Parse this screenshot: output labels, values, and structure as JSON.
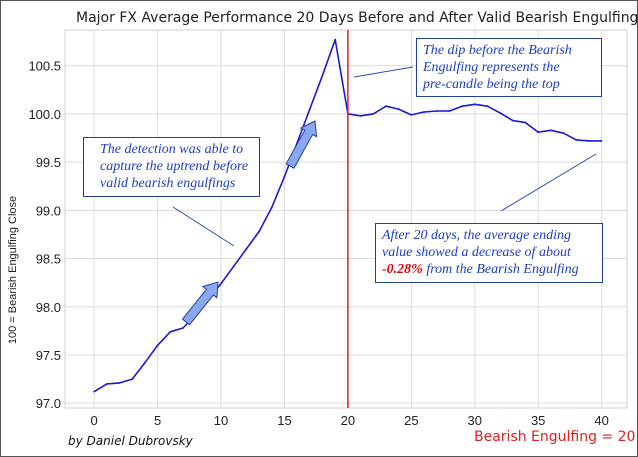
{
  "chart_data": {
    "type": "line",
    "title": "Major FX Average Performance 20 Days Before and After Valid Bearish Engulfings",
    "xlabel": "",
    "ylabel": "100 = Bearish Engulfing Close",
    "xlim": [
      -2.3,
      42.0
    ],
    "ylim": [
      96.95,
      100.87
    ],
    "x_ticks": [
      0,
      5,
      10,
      15,
      20,
      25,
      30,
      35,
      40
    ],
    "y_ticks": [
      97.0,
      97.5,
      98.0,
      98.5,
      99.0,
      99.5,
      100.0,
      100.5
    ],
    "grid": true,
    "series": [
      {
        "color": "#1a1ad6",
        "x": [
          0,
          1,
          2,
          3,
          4,
          5,
          6,
          7,
          8,
          9,
          10,
          11,
          12,
          13,
          14,
          15,
          16,
          17,
          18,
          19,
          20,
          21,
          22,
          23,
          24,
          25,
          26,
          27,
          28,
          29,
          30,
          31,
          32,
          33,
          34,
          35,
          36,
          37,
          38,
          39,
          40
        ],
        "values": [
          97.12,
          97.2,
          97.21,
          97.25,
          97.42,
          97.6,
          97.74,
          97.78,
          97.92,
          98.07,
          98.24,
          98.42,
          98.6,
          98.78,
          99.03,
          99.35,
          99.7,
          100.05,
          100.4,
          100.77,
          100.0,
          99.98,
          100.0,
          100.08,
          100.05,
          99.99,
          100.02,
          100.03,
          100.03,
          100.08,
          100.1,
          100.08,
          100.01,
          99.93,
          99.91,
          99.81,
          99.83,
          99.8,
          99.73,
          99.72,
          99.72
        ]
      }
    ],
    "vertical_line": {
      "x": 20,
      "color": "#e02020"
    },
    "marker_label": "Bearish Engulfing = 20",
    "credit": "by Daniel Dubrovsky",
    "annotations": [
      {
        "id": "annot-dip",
        "lines": [
          "The dip before the Bearish",
          "Engulfing represents the",
          "pre-candle being the top"
        ]
      },
      {
        "id": "annot-uptrend",
        "lines": [
          "The detection was able to",
          "capture the uptrend before",
          "valid bearish engulfings"
        ]
      },
      {
        "id": "annot-decrease",
        "lines": [
          "After 20 days, the average ending",
          "value showed a decrease of about"
        ],
        "highlight": "-0.28%",
        "tail": " from the Bearish Engulfing",
        "highlight_color": "#e00000"
      }
    ],
    "arrow_color": "#8aa8f0"
  }
}
